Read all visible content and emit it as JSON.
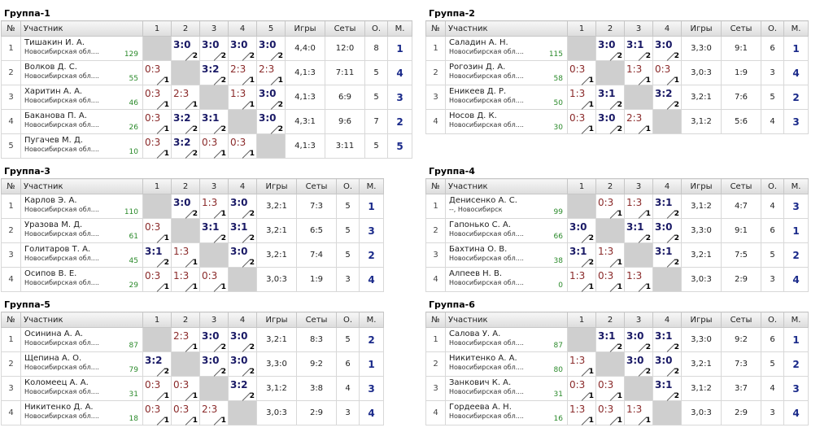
{
  "headers": {
    "num": "№",
    "participant": "Участник",
    "games": "Игры",
    "sets": "Сеты",
    "points": "О.",
    "place": "М."
  },
  "groups": [
    {
      "title": "Группа-1",
      "columns": [
        "1",
        "2",
        "3",
        "4",
        "5"
      ],
      "rows": [
        {
          "num": "1",
          "name": "Тишакин И. А.",
          "region": "Новосибирская обл....",
          "rating": "129",
          "cells": [
            null,
            {
              "s": "3:0",
              "p": "2",
              "w": true
            },
            {
              "s": "3:0",
              "p": "2",
              "w": true
            },
            {
              "s": "3:0",
              "p": "2",
              "w": true
            },
            {
              "s": "3:0",
              "p": "2",
              "w": true
            }
          ],
          "games": "4,4:0",
          "sets": "12:0",
          "points": "8",
          "place": "1"
        },
        {
          "num": "2",
          "name": "Волков Д. С.",
          "region": "Новосибирская обл....",
          "rating": "55",
          "cells": [
            {
              "s": "0:3",
              "p": "1",
              "w": false
            },
            null,
            {
              "s": "3:2",
              "p": "2",
              "w": true
            },
            {
              "s": "2:3",
              "p": "1",
              "w": false
            },
            {
              "s": "2:3",
              "p": "1",
              "w": false
            }
          ],
          "games": "4,1:3",
          "sets": "7:11",
          "points": "5",
          "place": "4"
        },
        {
          "num": "3",
          "name": "Харитин А. А.",
          "region": "Новосибирская обл....",
          "rating": "46",
          "cells": [
            {
              "s": "0:3",
              "p": "1",
              "w": false
            },
            {
              "s": "2:3",
              "p": "1",
              "w": false
            },
            null,
            {
              "s": "1:3",
              "p": "1",
              "w": false
            },
            {
              "s": "3:0",
              "p": "2",
              "w": true
            }
          ],
          "games": "4,1:3",
          "sets": "6:9",
          "points": "5",
          "place": "3"
        },
        {
          "num": "4",
          "name": "Баканова П. А.",
          "region": "Новосибирская обл....",
          "rating": "26",
          "cells": [
            {
              "s": "0:3",
              "p": "1",
              "w": false
            },
            {
              "s": "3:2",
              "p": "2",
              "w": true
            },
            {
              "s": "3:1",
              "p": "2",
              "w": true
            },
            null,
            {
              "s": "3:0",
              "p": "2",
              "w": true
            }
          ],
          "games": "4,3:1",
          "sets": "9:6",
          "points": "7",
          "place": "2"
        },
        {
          "num": "5",
          "name": "Пугачев М. Д.",
          "region": "Новосибирская обл....",
          "rating": "10",
          "cells": [
            {
              "s": "0:3",
              "p": "1",
              "w": false
            },
            {
              "s": "3:2",
              "p": "2",
              "w": true
            },
            {
              "s": "0:3",
              "p": "1",
              "w": false
            },
            {
              "s": "0:3",
              "p": "1",
              "w": false
            },
            null
          ],
          "games": "4,1:3",
          "sets": "3:11",
          "points": "5",
          "place": "5"
        }
      ]
    },
    {
      "title": "Группа-2",
      "columns": [
        "1",
        "2",
        "3",
        "4"
      ],
      "rows": [
        {
          "num": "1",
          "name": "Саладин А. Н.",
          "region": "Новосибирская обл....",
          "rating": "115",
          "cells": [
            null,
            {
              "s": "3:0",
              "p": "2",
              "w": true
            },
            {
              "s": "3:1",
              "p": "2",
              "w": true
            },
            {
              "s": "3:0",
              "p": "2",
              "w": true
            }
          ],
          "games": "3,3:0",
          "sets": "9:1",
          "points": "6",
          "place": "1"
        },
        {
          "num": "2",
          "name": "Рогозин Д. А.",
          "region": "Новосибирская обл....",
          "rating": "58",
          "cells": [
            {
              "s": "0:3",
              "p": "1",
              "w": false
            },
            null,
            {
              "s": "1:3",
              "p": "1",
              "w": false
            },
            {
              "s": "0:3",
              "p": "1",
              "w": false
            }
          ],
          "games": "3,0:3",
          "sets": "1:9",
          "points": "3",
          "place": "4"
        },
        {
          "num": "3",
          "name": "Еникеев Д. Р.",
          "region": "Новосибирская обл....",
          "rating": "50",
          "cells": [
            {
              "s": "1:3",
              "p": "1",
              "w": false
            },
            {
              "s": "3:1",
              "p": "2",
              "w": true
            },
            null,
            {
              "s": "3:2",
              "p": "2",
              "w": true
            }
          ],
          "games": "3,2:1",
          "sets": "7:6",
          "points": "5",
          "place": "2"
        },
        {
          "num": "4",
          "name": "Носов Д. К.",
          "region": "Новосибирская обл....",
          "rating": "30",
          "cells": [
            {
              "s": "0:3",
              "p": "1",
              "w": false
            },
            {
              "s": "3:0",
              "p": "2",
              "w": true
            },
            {
              "s": "2:3",
              "p": "1",
              "w": false
            },
            null
          ],
          "games": "3,1:2",
          "sets": "5:6",
          "points": "4",
          "place": "3"
        }
      ]
    },
    {
      "title": "Группа-3",
      "columns": [
        "1",
        "2",
        "3",
        "4"
      ],
      "rows": [
        {
          "num": "1",
          "name": "Карлов Э. А.",
          "region": "Новосибирская обл....",
          "rating": "110",
          "cells": [
            null,
            {
              "s": "3:0",
              "p": "2",
              "w": true
            },
            {
              "s": "1:3",
              "p": "1",
              "w": false
            },
            {
              "s": "3:0",
              "p": "2",
              "w": true
            }
          ],
          "games": "3,2:1",
          "sets": "7:3",
          "points": "5",
          "place": "1"
        },
        {
          "num": "2",
          "name": "Уразова М. Д.",
          "region": "Новосибирская обл....",
          "rating": "61",
          "cells": [
            {
              "s": "0:3",
              "p": "1",
              "w": false
            },
            null,
            {
              "s": "3:1",
              "p": "2",
              "w": true
            },
            {
              "s": "3:1",
              "p": "2",
              "w": true
            }
          ],
          "games": "3,2:1",
          "sets": "6:5",
          "points": "5",
          "place": "3"
        },
        {
          "num": "3",
          "name": "Голитаров Т. А.",
          "region": "Новосибирская обл....",
          "rating": "45",
          "cells": [
            {
              "s": "3:1",
              "p": "2",
              "w": true
            },
            {
              "s": "1:3",
              "p": "1",
              "w": false
            },
            null,
            {
              "s": "3:0",
              "p": "2",
              "w": true
            }
          ],
          "games": "3,2:1",
          "sets": "7:4",
          "points": "5",
          "place": "2"
        },
        {
          "num": "4",
          "name": "Осипов В. Е.",
          "region": "Новосибирская обл....",
          "rating": "29",
          "cells": [
            {
              "s": "0:3",
              "p": "1",
              "w": false
            },
            {
              "s": "1:3",
              "p": "1",
              "w": false
            },
            {
              "s": "0:3",
              "p": "1",
              "w": false
            },
            null
          ],
          "games": "3,0:3",
          "sets": "1:9",
          "points": "3",
          "place": "4"
        }
      ]
    },
    {
      "title": "Группа-4",
      "columns": [
        "1",
        "2",
        "3",
        "4"
      ],
      "rows": [
        {
          "num": "1",
          "name": "Денисенко А. С.",
          "region": "--, Новосибирск",
          "rating": "99",
          "cells": [
            null,
            {
              "s": "0:3",
              "p": "1",
              "w": false
            },
            {
              "s": "1:3",
              "p": "1",
              "w": false
            },
            {
              "s": "3:1",
              "p": "2",
              "w": true
            }
          ],
          "games": "3,1:2",
          "sets": "4:7",
          "points": "4",
          "place": "3"
        },
        {
          "num": "2",
          "name": "Гапонько С. А.",
          "region": "Новосибирская обл....",
          "rating": "66",
          "cells": [
            {
              "s": "3:0",
              "p": "2",
              "w": true
            },
            null,
            {
              "s": "3:1",
              "p": "2",
              "w": true
            },
            {
              "s": "3:0",
              "p": "2",
              "w": true
            }
          ],
          "games": "3,3:0",
          "sets": "9:1",
          "points": "6",
          "place": "1"
        },
        {
          "num": "3",
          "name": "Бахтина О. В.",
          "region": "Новосибирская обл....",
          "rating": "38",
          "cells": [
            {
              "s": "3:1",
              "p": "2",
              "w": true
            },
            {
              "s": "1:3",
              "p": "1",
              "w": false
            },
            null,
            {
              "s": "3:1",
              "p": "2",
              "w": true
            }
          ],
          "games": "3,2:1",
          "sets": "7:5",
          "points": "5",
          "place": "2"
        },
        {
          "num": "4",
          "name": "Алпеев Н. В.",
          "region": "Новосибирская обл....",
          "rating": "0",
          "cells": [
            {
              "s": "1:3",
              "p": "1",
              "w": false
            },
            {
              "s": "0:3",
              "p": "1",
              "w": false
            },
            {
              "s": "1:3",
              "p": "1",
              "w": false
            },
            null
          ],
          "games": "3,0:3",
          "sets": "2:9",
          "points": "3",
          "place": "4"
        }
      ]
    },
    {
      "title": "Группа-5",
      "columns": [
        "1",
        "2",
        "3",
        "4"
      ],
      "rows": [
        {
          "num": "1",
          "name": "Осинина А. А.",
          "region": "Новосибирская обл....",
          "rating": "87",
          "cells": [
            null,
            {
              "s": "2:3",
              "p": "1",
              "w": false
            },
            {
              "s": "3:0",
              "p": "2",
              "w": true
            },
            {
              "s": "3:0",
              "p": "2",
              "w": true
            }
          ],
          "games": "3,2:1",
          "sets": "8:3",
          "points": "5",
          "place": "2"
        },
        {
          "num": "2",
          "name": "Щепина А. О.",
          "region": "Новосибирская обл....",
          "rating": "79",
          "cells": [
            {
              "s": "3:2",
              "p": "2",
              "w": true
            },
            null,
            {
              "s": "3:0",
              "p": "2",
              "w": true
            },
            {
              "s": "3:0",
              "p": "2",
              "w": true
            }
          ],
          "games": "3,3:0",
          "sets": "9:2",
          "points": "6",
          "place": "1"
        },
        {
          "num": "3",
          "name": "Коломеец А. А.",
          "region": "Новосибирская обл....",
          "rating": "31",
          "cells": [
            {
              "s": "0:3",
              "p": "1",
              "w": false
            },
            {
              "s": "0:3",
              "p": "1",
              "w": false
            },
            null,
            {
              "s": "3:2",
              "p": "2",
              "w": true
            }
          ],
          "games": "3,1:2",
          "sets": "3:8",
          "points": "4",
          "place": "3"
        },
        {
          "num": "4",
          "name": "Никитенко Д. А.",
          "region": "Новосибирская обл....",
          "rating": "18",
          "cells": [
            {
              "s": "0:3",
              "p": "1",
              "w": false
            },
            {
              "s": "0:3",
              "p": "1",
              "w": false
            },
            {
              "s": "2:3",
              "p": "1",
              "w": false
            },
            null
          ],
          "games": "3,0:3",
          "sets": "2:9",
          "points": "3",
          "place": "4"
        }
      ]
    },
    {
      "title": "Группа-6",
      "columns": [
        "1",
        "2",
        "3",
        "4"
      ],
      "rows": [
        {
          "num": "1",
          "name": "Салова У. А.",
          "region": "Новосибирская обл....",
          "rating": "87",
          "cells": [
            null,
            {
              "s": "3:1",
              "p": "2",
              "w": true
            },
            {
              "s": "3:0",
              "p": "2",
              "w": true
            },
            {
              "s": "3:1",
              "p": "2",
              "w": true
            }
          ],
          "games": "3,3:0",
          "sets": "9:2",
          "points": "6",
          "place": "1"
        },
        {
          "num": "2",
          "name": "Никитенко А. А.",
          "region": "Новосибирская обл....",
          "rating": "80",
          "cells": [
            {
              "s": "1:3",
              "p": "1",
              "w": false
            },
            null,
            {
              "s": "3:0",
              "p": "2",
              "w": true
            },
            {
              "s": "3:0",
              "p": "2",
              "w": true
            }
          ],
          "games": "3,2:1",
          "sets": "7:3",
          "points": "5",
          "place": "2"
        },
        {
          "num": "3",
          "name": "Занкович К. А.",
          "region": "Новосибирская обл....",
          "rating": "31",
          "cells": [
            {
              "s": "0:3",
              "p": "1",
              "w": false
            },
            {
              "s": "0:3",
              "p": "1",
              "w": false
            },
            null,
            {
              "s": "3:1",
              "p": "2",
              "w": true
            }
          ],
          "games": "3,1:2",
          "sets": "3:7",
          "points": "4",
          "place": "3"
        },
        {
          "num": "4",
          "name": "Гордеева А. Н.",
          "region": "Новосибирская обл....",
          "rating": "16",
          "cells": [
            {
              "s": "1:3",
              "p": "1",
              "w": false
            },
            {
              "s": "0:3",
              "p": "1",
              "w": false
            },
            {
              "s": "1:3",
              "p": "1",
              "w": false
            },
            null
          ],
          "games": "3,0:3",
          "sets": "2:9",
          "points": "3",
          "place": "4"
        }
      ]
    }
  ]
}
